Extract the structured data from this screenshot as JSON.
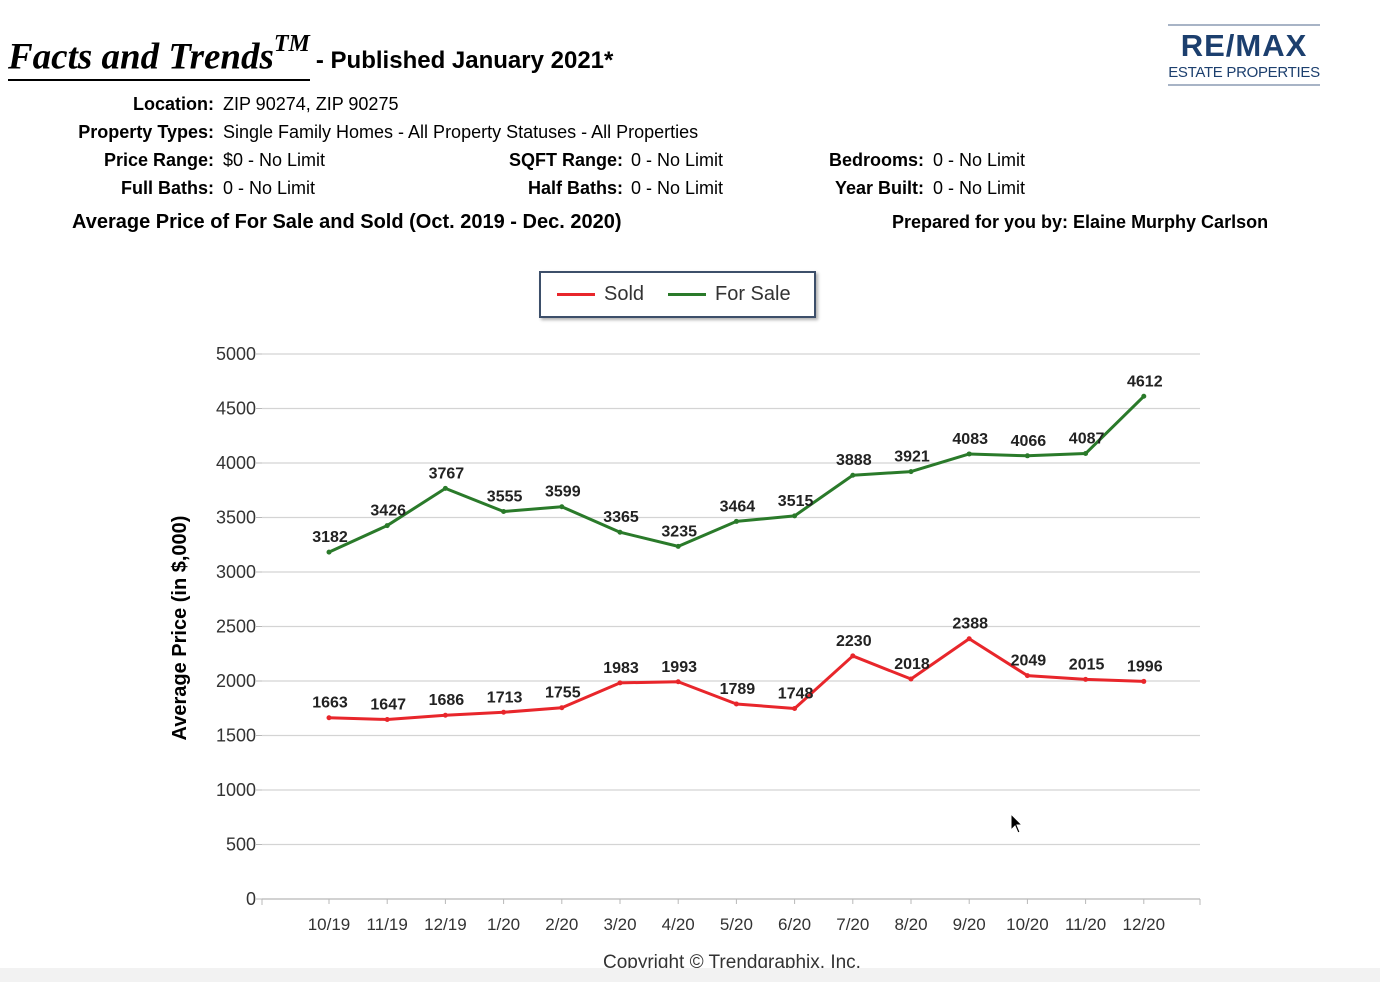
{
  "header": {
    "title": "Facts and Trends",
    "title_tm": "TM",
    "subtitle": "- Published January 2021*"
  },
  "logo": {
    "brand": "RE/MAX",
    "sub": "ESTATE PROPERTIES",
    "color": "#1c3f6e"
  },
  "criteria": {
    "location_label": "Location:",
    "location_value": "ZIP 90274, ZIP 90275",
    "property_types_label": "Property Types:",
    "property_types_value": "Single Family Homes - All Property Statuses - All Properties",
    "price_range_label": "Price Range:",
    "price_range_value": "$0 - No Limit",
    "sqft_range_label": "SQFT Range:",
    "sqft_range_value": "0 - No Limit",
    "bedrooms_label": "Bedrooms:",
    "bedrooms_value": "0 - No Limit",
    "full_baths_label": "Full Baths:",
    "full_baths_value": "0 - No Limit",
    "half_baths_label": "Half Baths:",
    "half_baths_value": "0 - No Limit",
    "year_built_label": "Year Built:",
    "year_built_value": "0 - No Limit"
  },
  "subheading": "Average Price of For Sale and Sold (Oct. 2019 - Dec. 2020)",
  "prepared_by": "Prepared for you by: Elaine Murphy Carlson",
  "copyright": "Copyright © Trendgraphix, Inc.",
  "chart_data": {
    "type": "line",
    "title": "",
    "xlabel": "",
    "ylabel": "Average Price (in $,000)",
    "ylim": [
      0,
      5000
    ],
    "yticks": [
      0,
      500,
      1000,
      1500,
      2000,
      2500,
      3000,
      3500,
      4000,
      4500,
      5000
    ],
    "grid": true,
    "legend_position": "top-center",
    "categories": [
      "10/19",
      "11/19",
      "12/19",
      "1/20",
      "2/20",
      "3/20",
      "4/20",
      "5/20",
      "6/20",
      "7/20",
      "8/20",
      "9/20",
      "10/20",
      "11/20",
      "12/20"
    ],
    "series": [
      {
        "name": "Sold",
        "color": "#e8262b",
        "values": [
          1663,
          1647,
          1686,
          1713,
          1755,
          1983,
          1993,
          1789,
          1748,
          2230,
          2018,
          2388,
          2049,
          2015,
          1996
        ]
      },
      {
        "name": "For Sale",
        "color": "#2a7a2a",
        "values": [
          3182,
          3426,
          3767,
          3555,
          3599,
          3365,
          3235,
          3464,
          3515,
          3888,
          3921,
          4083,
          4066,
          4087,
          4612
        ]
      }
    ]
  }
}
